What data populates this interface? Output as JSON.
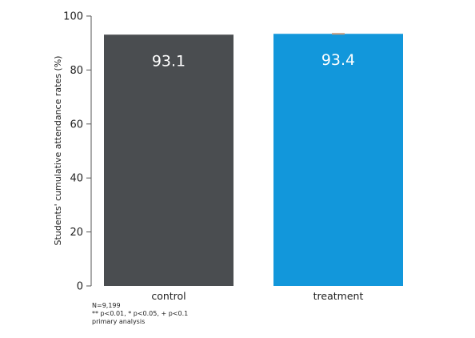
{
  "chart_data": {
    "type": "bar",
    "categories": [
      "control",
      "treatment"
    ],
    "values": [
      93.1,
      93.4
    ],
    "value_labels": [
      "93.1",
      "93.4"
    ],
    "colors": [
      "#4a4d50",
      "#1297db"
    ],
    "error_bar_color": "#c49a7e",
    "error_bars": [
      null,
      [
        93.1,
        93.7
      ]
    ],
    "title": "",
    "xlabel": "",
    "ylabel": "Students' cumulative attendance rates (%)",
    "ylim": [
      0,
      100
    ],
    "yticks": [
      0,
      20,
      40,
      60,
      80,
      100
    ],
    "grid": false,
    "legend": "none"
  },
  "notes": [
    "N=9,199",
    "** p<0.01, * p<0.05, + p<0.1",
    "primary analysis"
  ]
}
